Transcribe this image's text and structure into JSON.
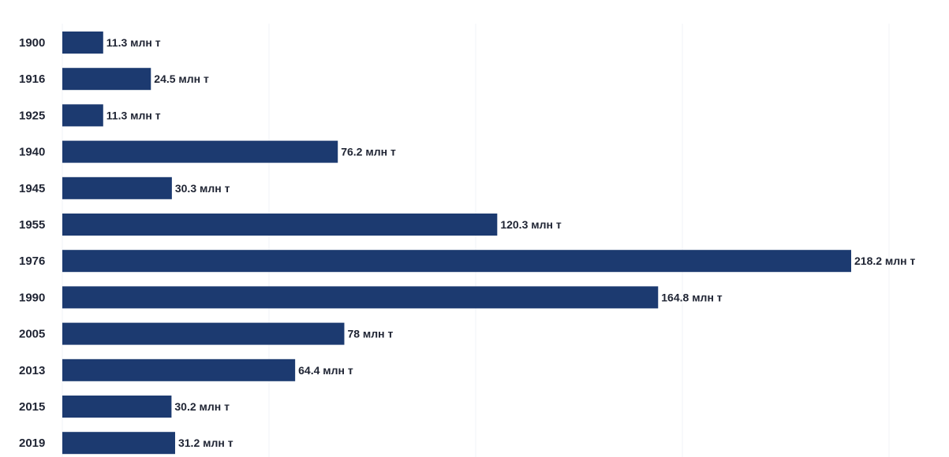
{
  "chart_data": {
    "type": "bar",
    "orientation": "horizontal",
    "categories": [
      "1900",
      "1916",
      "1925",
      "1940",
      "1945",
      "1955",
      "1976",
      "1990",
      "2005",
      "2013",
      "2015",
      "2019"
    ],
    "values": [
      11.3,
      24.5,
      11.3,
      76.2,
      30.3,
      120.3,
      218.2,
      164.8,
      78,
      64.4,
      30.2,
      31.2
    ],
    "value_labels": [
      "11.3 млн т",
      "24.5 млн т",
      "11.3 млн т",
      "76.2 млн т",
      "30.3 млн т",
      "120.3 млн т",
      "218.2 млн т",
      "164.8 млн т",
      "78 млн т",
      "64.4 млн т",
      "30.2 млн т",
      "31.2 млн т"
    ],
    "unit": "млн т",
    "xlim": [
      0,
      218.2
    ],
    "grid": true,
    "bar_color": "#1c3a70"
  }
}
